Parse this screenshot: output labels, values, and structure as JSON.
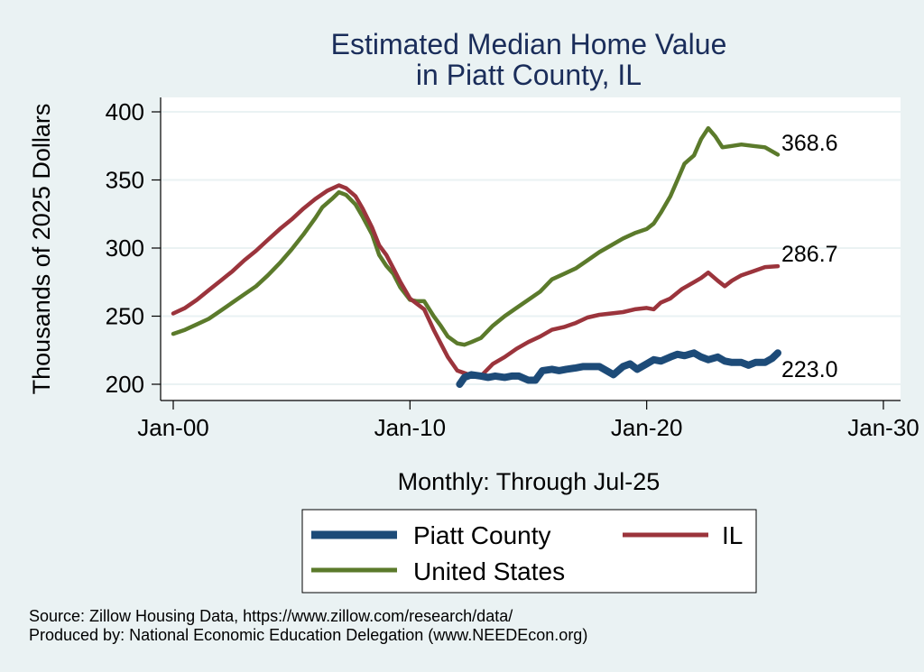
{
  "chart_data": {
    "type": "line",
    "title": [
      "Estimated Median Home Value",
      "in Piatt County, IL"
    ],
    "xlabel": "Monthly: Through Jul-25",
    "ylabel": "Thousands of 2025 Dollars",
    "xlim": [
      2000,
      2030
    ],
    "ylim": [
      195,
      405
    ],
    "x_ticks": [
      {
        "value": 2000,
        "label": "Jan-00"
      },
      {
        "value": 2010,
        "label": "Jan-10"
      },
      {
        "value": 2020,
        "label": "Jan-20"
      },
      {
        "value": 2030,
        "label": "Jan-30"
      }
    ],
    "y_ticks": [
      200,
      250,
      300,
      350,
      400
    ],
    "series": [
      {
        "name": "United States",
        "color": "#5b7a2b",
        "points": [
          [
            2000.0,
            237
          ],
          [
            2000.5,
            240
          ],
          [
            2001.0,
            244
          ],
          [
            2001.5,
            248
          ],
          [
            2002.0,
            254
          ],
          [
            2002.5,
            260
          ],
          [
            2003.0,
            266
          ],
          [
            2003.5,
            272
          ],
          [
            2004.0,
            280
          ],
          [
            2004.5,
            289
          ],
          [
            2005.0,
            299
          ],
          [
            2005.5,
            310
          ],
          [
            2006.0,
            322
          ],
          [
            2006.3,
            330
          ],
          [
            2006.7,
            336
          ],
          [
            2007.0,
            341
          ],
          [
            2007.3,
            339
          ],
          [
            2007.7,
            332
          ],
          [
            2008.0,
            323
          ],
          [
            2008.4,
            310
          ],
          [
            2008.7,
            295
          ],
          [
            2009.0,
            287
          ],
          [
            2009.3,
            281
          ],
          [
            2009.6,
            271
          ],
          [
            2010.0,
            262
          ],
          [
            2010.3,
            261
          ],
          [
            2010.6,
            261
          ],
          [
            2011.0,
            250
          ],
          [
            2011.3,
            243
          ],
          [
            2011.6,
            235
          ],
          [
            2012.0,
            230
          ],
          [
            2012.3,
            229
          ],
          [
            2012.6,
            231
          ],
          [
            2013.0,
            234
          ],
          [
            2013.5,
            243
          ],
          [
            2014.0,
            250
          ],
          [
            2014.5,
            256
          ],
          [
            2015.0,
            262
          ],
          [
            2015.5,
            268
          ],
          [
            2016.0,
            277
          ],
          [
            2016.5,
            281
          ],
          [
            2017.0,
            285
          ],
          [
            2017.5,
            291
          ],
          [
            2018.0,
            297
          ],
          [
            2018.5,
            302
          ],
          [
            2019.0,
            307
          ],
          [
            2019.5,
            311
          ],
          [
            2020.0,
            314
          ],
          [
            2020.3,
            318
          ],
          [
            2020.6,
            326
          ],
          [
            2021.0,
            338
          ],
          [
            2021.3,
            350
          ],
          [
            2021.6,
            362
          ],
          [
            2022.0,
            368
          ],
          [
            2022.3,
            380
          ],
          [
            2022.6,
            388
          ],
          [
            2022.9,
            382
          ],
          [
            2023.2,
            374
          ],
          [
            2023.6,
            375
          ],
          [
            2024.0,
            376
          ],
          [
            2024.5,
            375
          ],
          [
            2025.0,
            374
          ],
          [
            2025.3,
            371
          ],
          [
            2025.54,
            368.6
          ]
        ]
      },
      {
        "name": "IL",
        "color": "#9b343c",
        "points": [
          [
            2000.0,
            252
          ],
          [
            2000.5,
            256
          ],
          [
            2001.0,
            262
          ],
          [
            2001.5,
            269
          ],
          [
            2002.0,
            276
          ],
          [
            2002.5,
            283
          ],
          [
            2003.0,
            291
          ],
          [
            2003.5,
            298
          ],
          [
            2004.0,
            306
          ],
          [
            2004.5,
            314
          ],
          [
            2005.0,
            321
          ],
          [
            2005.5,
            329
          ],
          [
            2006.0,
            336
          ],
          [
            2006.5,
            342
          ],
          [
            2007.0,
            346
          ],
          [
            2007.3,
            344
          ],
          [
            2007.7,
            338
          ],
          [
            2008.0,
            329
          ],
          [
            2008.4,
            315
          ],
          [
            2008.7,
            302
          ],
          [
            2009.0,
            295
          ],
          [
            2009.3,
            285
          ],
          [
            2009.6,
            275
          ],
          [
            2010.0,
            263
          ],
          [
            2010.3,
            259
          ],
          [
            2010.6,
            255
          ],
          [
            2011.0,
            240
          ],
          [
            2011.3,
            230
          ],
          [
            2011.6,
            220
          ],
          [
            2012.0,
            210
          ],
          [
            2012.5,
            207
          ],
          [
            2013.0,
            206
          ],
          [
            2013.5,
            215
          ],
          [
            2014.0,
            220
          ],
          [
            2014.5,
            226
          ],
          [
            2015.0,
            231
          ],
          [
            2015.5,
            235
          ],
          [
            2016.0,
            240
          ],
          [
            2016.5,
            242
          ],
          [
            2017.0,
            245
          ],
          [
            2017.5,
            249
          ],
          [
            2018.0,
            251
          ],
          [
            2018.5,
            252
          ],
          [
            2019.0,
            253
          ],
          [
            2019.5,
            255
          ],
          [
            2020.0,
            256
          ],
          [
            2020.3,
            255
          ],
          [
            2020.6,
            260
          ],
          [
            2021.0,
            263
          ],
          [
            2021.5,
            270
          ],
          [
            2022.0,
            275
          ],
          [
            2022.3,
            278
          ],
          [
            2022.6,
            282
          ],
          [
            2023.0,
            276
          ],
          [
            2023.3,
            272
          ],
          [
            2023.6,
            276
          ],
          [
            2024.0,
            280
          ],
          [
            2024.5,
            283
          ],
          [
            2025.0,
            286
          ],
          [
            2025.54,
            286.7
          ]
        ]
      },
      {
        "name": "Piatt County",
        "color": "#1d4b78",
        "points": [
          [
            2012.1,
            200
          ],
          [
            2012.3,
            205
          ],
          [
            2012.6,
            207
          ],
          [
            2013.0,
            206
          ],
          [
            2013.3,
            205
          ],
          [
            2013.6,
            206
          ],
          [
            2014.0,
            205
          ],
          [
            2014.3,
            206
          ],
          [
            2014.6,
            206
          ],
          [
            2015.0,
            203
          ],
          [
            2015.3,
            203
          ],
          [
            2015.6,
            210
          ],
          [
            2016.0,
            211
          ],
          [
            2016.3,
            210
          ],
          [
            2016.6,
            211
          ],
          [
            2017.0,
            212
          ],
          [
            2017.3,
            213
          ],
          [
            2017.6,
            213
          ],
          [
            2018.0,
            213
          ],
          [
            2018.3,
            210
          ],
          [
            2018.6,
            207
          ],
          [
            2019.0,
            213
          ],
          [
            2019.3,
            215
          ],
          [
            2019.6,
            211
          ],
          [
            2020.0,
            215
          ],
          [
            2020.3,
            218
          ],
          [
            2020.6,
            217
          ],
          [
            2021.0,
            220
          ],
          [
            2021.3,
            222
          ],
          [
            2021.6,
            221
          ],
          [
            2022.0,
            223
          ],
          [
            2022.3,
            220
          ],
          [
            2022.6,
            218
          ],
          [
            2023.0,
            220
          ],
          [
            2023.3,
            217
          ],
          [
            2023.6,
            216
          ],
          [
            2024.0,
            216
          ],
          [
            2024.3,
            214
          ],
          [
            2024.6,
            216
          ],
          [
            2025.0,
            216
          ],
          [
            2025.3,
            219
          ],
          [
            2025.54,
            223.0
          ]
        ]
      }
    ],
    "end_labels": [
      {
        "series": "United States",
        "text": "368.6",
        "value": 368.6
      },
      {
        "series": "IL",
        "text": "286.7",
        "value": 286.7
      },
      {
        "series": "Piatt County",
        "text": "223.0",
        "value": 223.0
      }
    ],
    "legend": {
      "position": "bottom",
      "items": [
        {
          "name": "Piatt County",
          "color": "#1d4b78"
        },
        {
          "name": "IL",
          "color": "#9b343c"
        },
        {
          "name": "United States",
          "color": "#5b7a2b"
        }
      ]
    },
    "source_lines": [
      "Source: Zillow Housing Data, https://www.zillow.com/research/data/",
      "Produced by: National Economic Education Delegation (www.NEEDEcon.org)"
    ],
    "colors": {
      "background": "#eaf2f3",
      "plot_background": "#ffffff",
      "gridline": "#eaf2f3",
      "title": "#1a2d5a"
    }
  }
}
